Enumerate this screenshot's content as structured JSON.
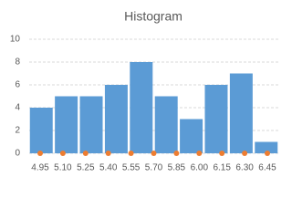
{
  "chart_data": {
    "type": "histogram",
    "title": "Histogram",
    "bins": [
      4.95,
      5.1,
      5.25,
      5.4,
      5.55,
      5.7,
      5.85,
      6.0,
      6.15,
      6.3,
      6.45
    ],
    "values": [
      4,
      5,
      5,
      6,
      8,
      5,
      3,
      6,
      7,
      1
    ],
    "color": "#5b9bd5",
    "markers": {
      "type": "scatter",
      "color": "#ed7d31",
      "values": [
        0,
        0,
        0,
        0,
        0,
        0,
        0,
        0,
        0,
        0,
        0
      ]
    },
    "xlim": [
      4.95,
      6.45
    ],
    "xticks": [
      {
        "value": 4.95,
        "label": "4.95"
      },
      {
        "value": 5.1,
        "label": "5.10"
      },
      {
        "value": 5.25,
        "label": "5.25"
      },
      {
        "value": 5.4,
        "label": "5.40"
      },
      {
        "value": 5.55,
        "label": "5.55"
      },
      {
        "value": 5.7,
        "label": "5.70"
      },
      {
        "value": 5.85,
        "label": "5.85"
      },
      {
        "value": 6.0,
        "label": "6.00"
      },
      {
        "value": 6.15,
        "label": "6.15"
      },
      {
        "value": 6.3,
        "label": "6.30"
      },
      {
        "value": 6.45,
        "label": "6.45"
      }
    ],
    "ylim": [
      0,
      10
    ],
    "yticks": [
      0,
      2,
      4,
      6,
      8,
      10
    ],
    "grid": true
  }
}
